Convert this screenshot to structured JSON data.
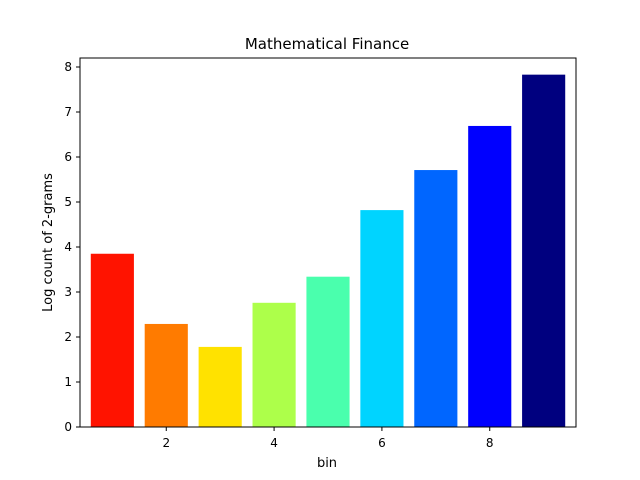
{
  "chart_data": {
    "type": "bar",
    "title": "Mathematical Finance",
    "xlabel": "bin",
    "ylabel": "Log count of 2-grams",
    "x": [
      1,
      2,
      3,
      4,
      5,
      6,
      7,
      8,
      9
    ],
    "values": [
      3.85,
      2.29,
      1.78,
      2.76,
      3.34,
      4.82,
      5.71,
      6.69,
      7.83
    ],
    "colors": [
      "#ff1300",
      "#ff7b00",
      "#ffe200",
      "#adff4a",
      "#4affad",
      "#00d4ff",
      "#0066ff",
      "#0000ff",
      "#00007f"
    ],
    "xlim": [
      0.4,
      9.6
    ],
    "ylim": [
      0,
      8.2
    ],
    "xticks": [
      2,
      4,
      6,
      8
    ],
    "yticks": [
      0,
      1,
      2,
      3,
      4,
      5,
      6,
      7,
      8
    ],
    "grid": false,
    "legend": "none"
  }
}
